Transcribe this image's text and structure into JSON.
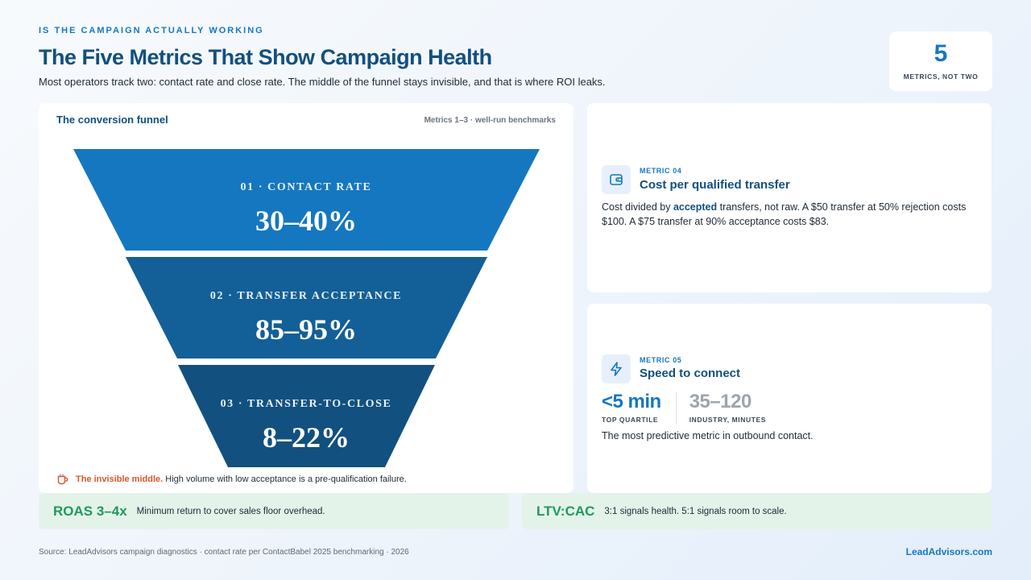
{
  "header": {
    "eyebrow": "IS THE CAMPAIGN ACTUALLY WORKING",
    "title": "The Five Metrics That Show Campaign Health",
    "subtitle": "Most operators track two: contact rate and close rate. The middle of the funnel stays invisible, and that is where ROI leaks."
  },
  "stat": {
    "value": "5",
    "label": "METRICS, NOT TWO"
  },
  "funnel": {
    "heading": "The conversion funnel",
    "meta": "Metrics 1–3 · well-run benchmarks",
    "stages": [
      {
        "label": "01 · CONTACT RATE",
        "value": "30–40%",
        "color": "#1577c0"
      },
      {
        "label": "02 · TRANSFER ACCEPTANCE",
        "value": "85–95%",
        "color": "#135f97"
      },
      {
        "label": "03 · TRANSFER-TO-CLOSE",
        "value": "8–22%",
        "color": "#12507f"
      }
    ],
    "note_highlight": "The invisible middle.",
    "note_text": "High volume with low acceptance is a pre-qualification failure."
  },
  "metric4": {
    "kicker": "METRIC 04",
    "title": "Cost per qualified transfer",
    "body_pre": "Cost divided by ",
    "body_em": "accepted",
    "body_post": " transfers, not raw. A $50 transfer at 50% rejection costs $100. A $75 transfer at 90% acceptance costs $83.",
    "icon": "wallet-icon"
  },
  "metric5": {
    "kicker": "METRIC 05",
    "title": "Speed to connect",
    "primary_value": "<5 min",
    "primary_label": "TOP QUARTILE",
    "secondary_value": "35–120",
    "secondary_label": "INDUSTRY, MINUTES",
    "body": "The most predictive metric in outbound contact.",
    "icon": "lightning-icon"
  },
  "bars": [
    {
      "key": "ROAS 3–4x",
      "text": "Minimum return to cover sales floor overhead."
    },
    {
      "key": "LTV:CAC",
      "text": "3:1 signals health. 5:1 signals room to scale."
    }
  ],
  "footer": {
    "source": "Source: LeadAdvisors campaign diagnostics · contact rate per ContactBabel 2025 benchmarking · 2026",
    "brand": "LeadAdvisors.com"
  },
  "colors": {
    "accent": "#1577c0",
    "navy": "#12507f",
    "warning": "#d9552b",
    "positive": "#1e9a5a"
  }
}
